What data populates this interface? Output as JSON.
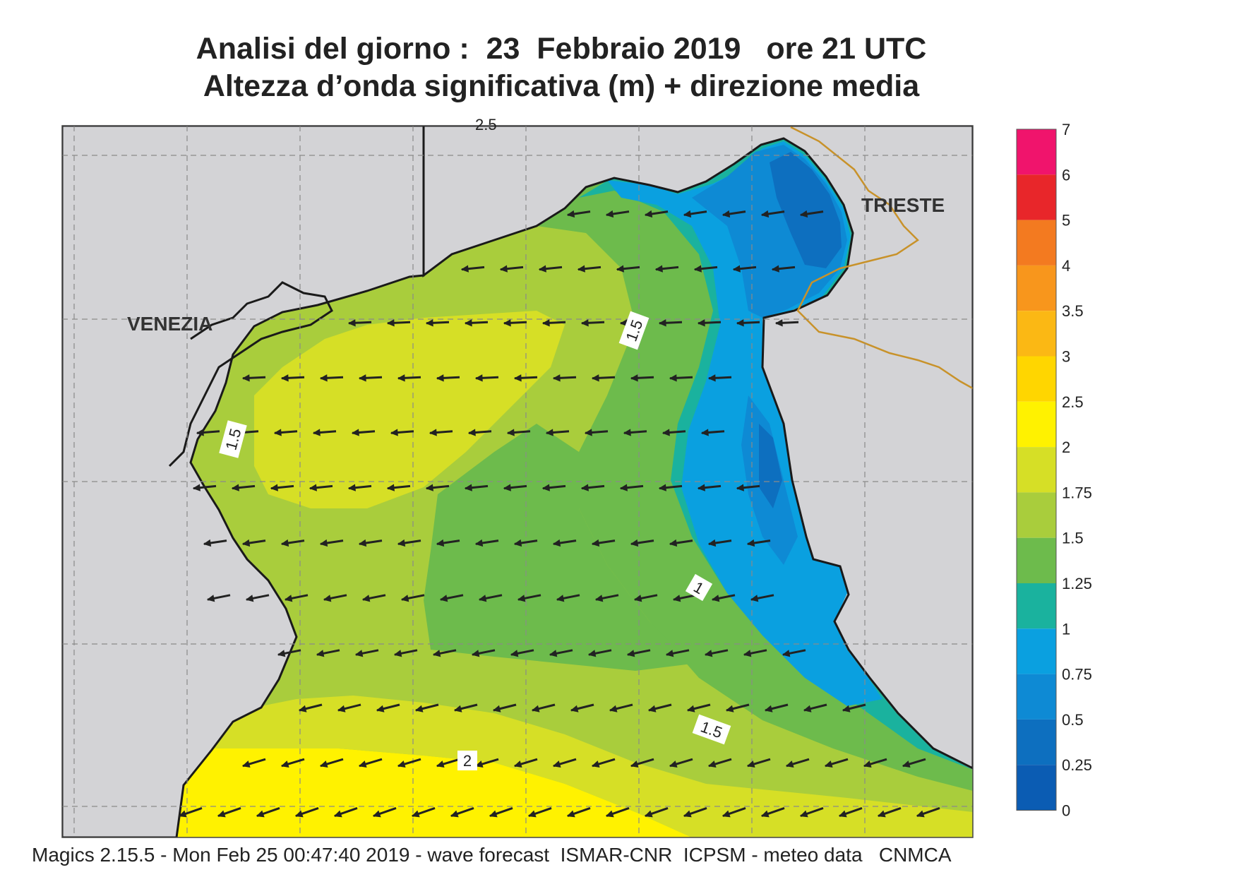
{
  "title": {
    "line1": "Analisi del giorno :  23  Febbraio 2019   ore 21 UTC",
    "line2": "Altezza d’onda significativa (m) + direzione media"
  },
  "map": {
    "region": "Northern Adriatic Sea",
    "place_labels": [
      "VENEZIA",
      "TRIESTE"
    ],
    "contour_labels": [
      "1.5",
      "1.5",
      "1",
      "1.5",
      "2"
    ],
    "top_partial_label": "2.5",
    "land_color": "#d3d3d6",
    "coast_color": "#1a1a1a",
    "border_color": "#c8922a",
    "arrow_color": "#222222",
    "wave_direction": "westward"
  },
  "legend": {
    "levels": [
      "7",
      "6",
      "5",
      "4",
      "3.5",
      "3",
      "2.5",
      "2",
      "1.75",
      "1.5",
      "1.25",
      "1",
      "0.75",
      "0.5",
      "0.25",
      "0"
    ],
    "colors": [
      "#f0146c",
      "#e8262a",
      "#f37a20",
      "#f8961c",
      "#fbb814",
      "#ffd600",
      "#fff200",
      "#d6df26",
      "#a9cd3c",
      "#6dbb4c",
      "#1ab29e",
      "#0aa0e0",
      "#0e8ad4",
      "#0d6fbf",
      "#0b5cb3"
    ]
  },
  "footer": "Magics 2.15.5 - Mon Feb 25 00:47:40 2019 - wave forecast  ISMAR-CNR  ICPSM - meteo data   CNMCA"
}
